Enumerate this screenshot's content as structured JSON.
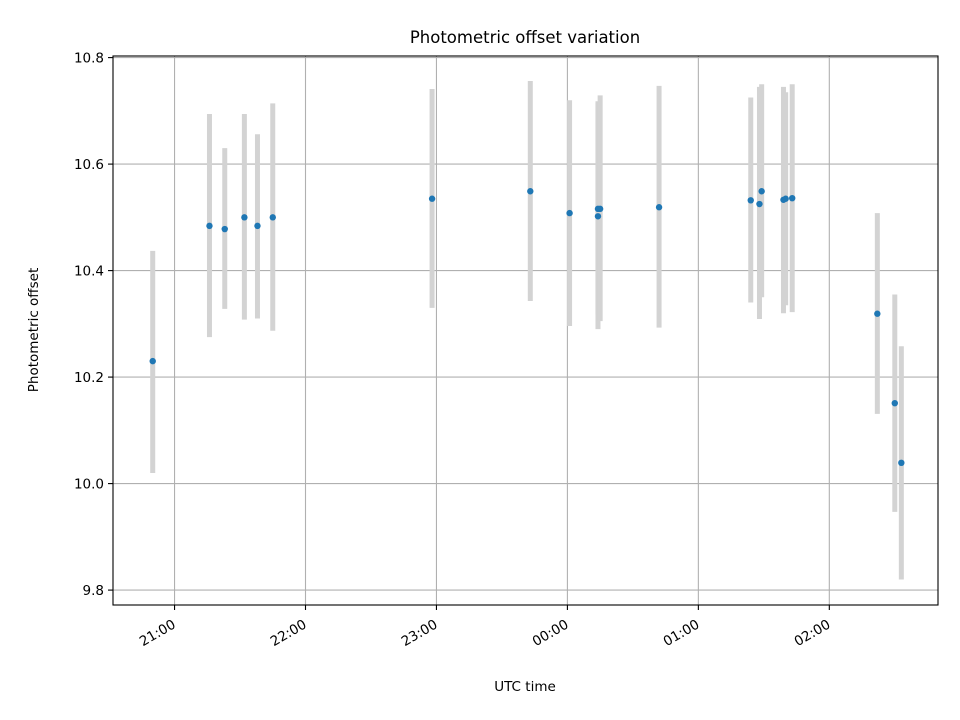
{
  "chart_data": {
    "type": "scatter",
    "title": "Photometric offset variation",
    "xlabel": "UTC time",
    "ylabel": "Photometric offset",
    "x_axis_kind": "time",
    "x_ticks": [
      "21:00",
      "22:00",
      "23:00",
      "00:00",
      "01:00",
      "02:00"
    ],
    "x_tick_hours": [
      21,
      22,
      23,
      24,
      25,
      26
    ],
    "xlim": [
      20.53,
      26.83
    ],
    "ylim": [
      9.772,
      10.803
    ],
    "y_ticks": [
      9.8,
      10.0,
      10.2,
      10.4,
      10.6,
      10.8
    ],
    "y_tick_labels": [
      "9.8",
      "10.0",
      "10.2",
      "10.4",
      "10.6",
      "10.8"
    ],
    "grid": true,
    "marker_color": "#1f77b4",
    "errorbar_color": "#d3d3d3",
    "points": [
      {
        "t": "20:50",
        "y": 10.23,
        "err_low": 10.02,
        "err_high": 10.437
      },
      {
        "t": "21:16",
        "y": 10.484,
        "err_low": 10.275,
        "err_high": 10.694
      },
      {
        "t": "21:23",
        "y": 10.478,
        "err_low": 10.328,
        "err_high": 10.63
      },
      {
        "t": "21:32",
        "y": 10.5,
        "err_low": 10.308,
        "err_high": 10.694
      },
      {
        "t": "21:38",
        "y": 10.484,
        "err_low": 10.31,
        "err_high": 10.656
      },
      {
        "t": "21:45",
        "y": 10.5,
        "err_low": 10.287,
        "err_high": 10.714
      },
      {
        "t": "22:58",
        "y": 10.535,
        "err_low": 10.33,
        "err_high": 10.741
      },
      {
        "t": "23:43",
        "y": 10.549,
        "err_low": 10.343,
        "err_high": 10.756
      },
      {
        "t": "00:01",
        "y": 10.508,
        "err_low": 10.296,
        "err_high": 10.72
      },
      {
        "t": "00:14",
        "y": 10.516,
        "err_low": 10.318,
        "err_high": 10.715
      },
      {
        "t": "00:14",
        "y": 10.502,
        "err_low": 10.29,
        "err_high": 10.718
      },
      {
        "t": "00:15",
        "y": 10.516,
        "err_low": 10.305,
        "err_high": 10.729
      },
      {
        "t": "00:42",
        "y": 10.519,
        "err_low": 10.293,
        "err_high": 10.747
      },
      {
        "t": "01:24",
        "y": 10.532,
        "err_low": 10.34,
        "err_high": 10.725
      },
      {
        "t": "01:28",
        "y": 10.525,
        "err_low": 10.309,
        "err_high": 10.745
      },
      {
        "t": "01:29",
        "y": 10.549,
        "err_low": 10.35,
        "err_high": 10.75
      },
      {
        "t": "01:39",
        "y": 10.533,
        "err_low": 10.32,
        "err_high": 10.745
      },
      {
        "t": "01:40",
        "y": 10.535,
        "err_low": 10.335,
        "err_high": 10.735
      },
      {
        "t": "01:43",
        "y": 10.536,
        "err_low": 10.322,
        "err_high": 10.75
      },
      {
        "t": "02:22",
        "y": 10.319,
        "err_low": 10.131,
        "err_high": 10.508
      },
      {
        "t": "02:30",
        "y": 10.151,
        "err_low": 9.947,
        "err_high": 10.355
      },
      {
        "t": "02:33",
        "y": 10.039,
        "err_low": 9.82,
        "err_high": 10.258
      }
    ]
  }
}
